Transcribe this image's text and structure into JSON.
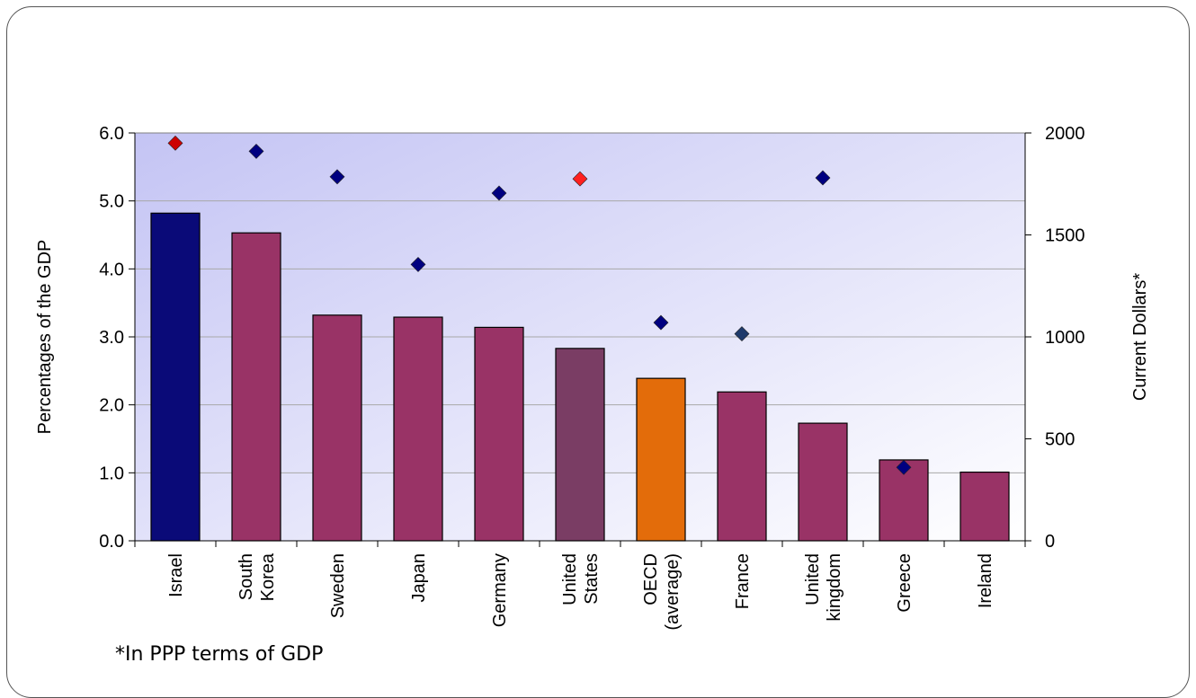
{
  "footnote": "*In PPP terms of GDP",
  "chart_data": {
    "type": "bar",
    "categories": [
      [
        "Israel"
      ],
      [
        "South",
        "Korea"
      ],
      [
        "Sweden"
      ],
      [
        "Japan"
      ],
      [
        "Germany"
      ],
      [
        "United",
        "States"
      ],
      [
        "OECD",
        "(average)"
      ],
      [
        "France"
      ],
      [
        "United",
        "kingdom"
      ],
      [
        "Greece"
      ],
      [
        "Ireland"
      ]
    ],
    "series": [
      {
        "kind": "bar",
        "axis": "left",
        "values": [
          4.82,
          4.53,
          3.32,
          3.29,
          3.14,
          2.83,
          2.39,
          2.19,
          1.73,
          1.19,
          1.01
        ],
        "colors": [
          "#0A0A78",
          "#993366",
          "#993366",
          "#993366",
          "#993366",
          "#7A3D64",
          "#E36C0A",
          "#993366",
          "#993366",
          "#993366",
          "#993366"
        ]
      },
      {
        "kind": "scatter",
        "axis": "right",
        "values": [
          1950,
          1910,
          1785,
          1355,
          1705,
          1775,
          1070,
          1015,
          1780,
          360,
          null
        ],
        "colors": [
          "#CC0000",
          "#000080",
          "#000080",
          "#000080",
          "#000080",
          "#FF2020",
          "#000080",
          "#1F3A6B",
          "#000080",
          "#000080",
          "#000080"
        ]
      }
    ],
    "ylabel": "Percentages of the GDP",
    "ylabel_right": "Current Dollars*",
    "ylim": [
      0,
      6
    ],
    "yticks": [
      "0.0",
      "1.0",
      "2.0",
      "3.0",
      "4.0",
      "5.0",
      "6.0"
    ],
    "ylim_right": [
      0,
      2000
    ],
    "yticks_right": [
      "0",
      "500",
      "1000",
      "1500",
      "2000"
    ],
    "grid": true,
    "background_gradient": [
      "#C8C8F5",
      "#FFFFFF"
    ]
  }
}
